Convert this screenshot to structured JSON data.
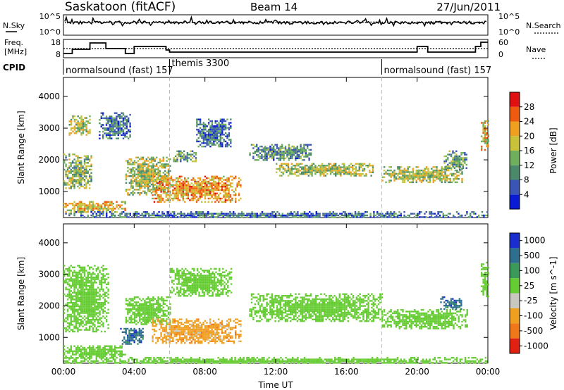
{
  "header": {
    "station": "Saskatoon (fitACF)",
    "beam": "Beam 14",
    "date": "27/Jun/2011"
  },
  "panels": {
    "nsky": {
      "label": "N.Sky",
      "right_label": "N.Search",
      "ticks_left": [
        "10^5",
        "10^0"
      ],
      "ticks_right": [
        "10^5",
        "10^0"
      ]
    },
    "freq": {
      "label_line1": "Freq.",
      "label_line2": "[MHz]",
      "right_label": "Nave",
      "ticks_left": [
        "18",
        "8"
      ],
      "ticks_right": [
        "60",
        "0"
      ]
    },
    "cpid": {
      "label": "CPID",
      "segments": [
        {
          "start_hour": 0,
          "text": "normalsound (fast) 157"
        },
        {
          "start_hour": 6,
          "text": "themis 3300"
        },
        {
          "start_hour": 18,
          "text": "normalsound (fast) 157"
        }
      ]
    }
  },
  "chart_data": [
    {
      "type": "heatmap",
      "title": "",
      "quantity": "Power",
      "xlabel": "",
      "ylabel": "Slant Range [km]",
      "xlim_hours": [
        0,
        24
      ],
      "ylim": [
        180,
        4600
      ],
      "x_ticks": [
        "00:00",
        "04:00",
        "08:00",
        "12:00",
        "16:00",
        "20:00",
        "00:00"
      ],
      "y_ticks": [
        1000,
        2000,
        3000,
        4000
      ],
      "colorbar": {
        "label": "Power [dB]",
        "ticks": [
          4,
          8,
          12,
          16,
          20,
          24,
          28
        ],
        "colors": [
          "#0a1bd6",
          "#3a55b4",
          "#4a8a6a",
          "#6fae5c",
          "#c8c23a",
          "#f0a020",
          "#ee5a10",
          "#e01010"
        ]
      },
      "echo_bands": [
        {
          "t_start": 0.0,
          "t_end": 1.6,
          "range_start": 1100,
          "range_end": 2200,
          "power": 14
        },
        {
          "t_start": 0.0,
          "t_end": 3.5,
          "range_start": 350,
          "range_end": 700,
          "power": 20
        },
        {
          "t_start": 0.3,
          "t_end": 1.5,
          "range_start": 2800,
          "range_end": 3400,
          "power": 16
        },
        {
          "t_start": 2.0,
          "t_end": 3.8,
          "range_start": 2700,
          "range_end": 3500,
          "power": 8
        },
        {
          "t_start": 3.5,
          "t_end": 6.0,
          "range_start": 900,
          "range_end": 2100,
          "power": 16
        },
        {
          "t_start": 5.0,
          "t_end": 10.0,
          "range_start": 700,
          "range_end": 1500,
          "power": 22
        },
        {
          "t_start": 6.2,
          "t_end": 7.5,
          "range_start": 1950,
          "range_end": 2300,
          "power": 12
        },
        {
          "t_start": 7.5,
          "t_end": 9.5,
          "range_start": 2400,
          "range_end": 3300,
          "power": 8
        },
        {
          "t_start": 10.5,
          "t_end": 14.0,
          "range_start": 2000,
          "range_end": 2500,
          "power": 10
        },
        {
          "t_start": 12.0,
          "t_end": 17.5,
          "range_start": 1500,
          "range_end": 1900,
          "power": 16
        },
        {
          "t_start": 18.0,
          "t_end": 22.5,
          "range_start": 1300,
          "range_end": 1800,
          "power": 16
        },
        {
          "t_start": 21.5,
          "t_end": 22.8,
          "range_start": 1700,
          "range_end": 2300,
          "power": 12
        },
        {
          "t_start": 23.6,
          "t_end": 24.0,
          "range_start": 2300,
          "range_end": 3300,
          "power": 20
        },
        {
          "t_start": 0.0,
          "t_end": 24.0,
          "range_start": 180,
          "range_end": 380,
          "power": 8
        }
      ]
    },
    {
      "type": "heatmap",
      "title": "",
      "quantity": "Velocity",
      "xlabel": "Time UT",
      "ylabel": "Slant Range [km]",
      "xlim_hours": [
        0,
        24
      ],
      "ylim": [
        180,
        4600
      ],
      "x_ticks": [
        "00:00",
        "04:00",
        "08:00",
        "12:00",
        "16:00",
        "20:00",
        "00:00"
      ],
      "y_ticks": [
        1000,
        2000,
        3000,
        4000
      ],
      "colorbar": {
        "label": "Velocity [m s^-1]",
        "ticks": [
          "1000",
          "500",
          "100",
          "25",
          "-25",
          "-100",
          "-500",
          "-1000"
        ],
        "colors": [
          "#1a2ed0",
          "#2e6e8e",
          "#3b9a5a",
          "#66cc33",
          "#c8c8c0",
          "#f0a020",
          "#f07818",
          "#e02010"
        ]
      },
      "echo_bands": [
        {
          "t_start": 0.0,
          "t_end": 2.5,
          "range_start": 1200,
          "range_end": 3300,
          "velocity": 0
        },
        {
          "t_start": 0.0,
          "t_end": 3.5,
          "range_start": 350,
          "range_end": 750,
          "velocity": 0
        },
        {
          "t_start": 3.5,
          "t_end": 6.0,
          "range_start": 1400,
          "range_end": 2300,
          "velocity": 0
        },
        {
          "t_start": 3.2,
          "t_end": 4.5,
          "range_start": 800,
          "range_end": 1300,
          "velocity": 300
        },
        {
          "t_start": 5.0,
          "t_end": 10.0,
          "range_start": 800,
          "range_end": 1600,
          "velocity": -300
        },
        {
          "t_start": 6.0,
          "t_end": 9.5,
          "range_start": 2300,
          "range_end": 3200,
          "velocity": 0
        },
        {
          "t_start": 10.5,
          "t_end": 18.0,
          "range_start": 1500,
          "range_end": 2400,
          "velocity": 0
        },
        {
          "t_start": 18.0,
          "t_end": 22.8,
          "range_start": 1300,
          "range_end": 1900,
          "velocity": 0
        },
        {
          "t_start": 21.3,
          "t_end": 22.5,
          "range_start": 1900,
          "range_end": 2300,
          "velocity": 300
        },
        {
          "t_start": 23.6,
          "t_end": 24.0,
          "range_start": 2300,
          "range_end": 3400,
          "velocity": 0
        },
        {
          "t_start": 0.0,
          "t_end": 24.0,
          "range_start": 180,
          "range_end": 380,
          "velocity": 0
        }
      ]
    }
  ]
}
